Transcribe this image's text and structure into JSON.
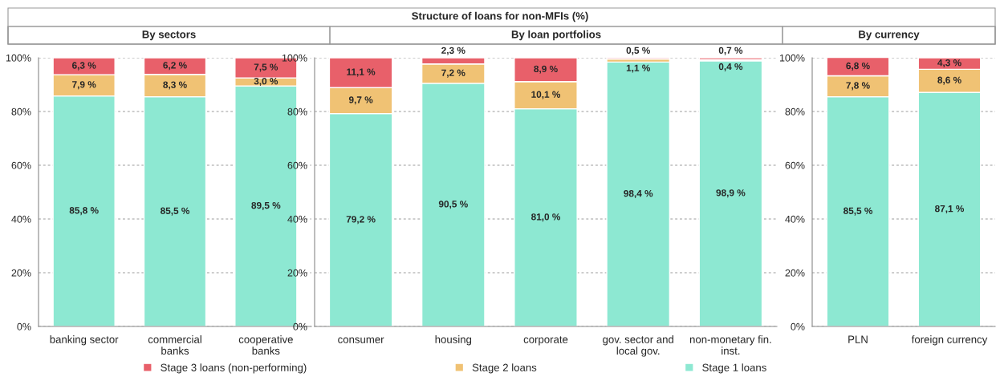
{
  "chart_data": [
    {
      "type": "bar",
      "stacked": true,
      "title": "By sectors",
      "annotations": [
        "Structure of loans for non-MFIs (%)"
      ],
      "categories": [
        "banking sector",
        "commercial\nbanks",
        "cooperative\nbanks"
      ],
      "series": [
        {
          "color": "#8de8d2",
          "values": [
            85.8,
            85.5,
            89.5
          ],
          "value_labels": [
            "85,8 %",
            "85,5 %",
            "89,5 %"
          ]
        },
        {
          "color": "#f0c274",
          "values": [
            7.9,
            8.3,
            3.0
          ],
          "value_labels": [
            "7,9 %",
            "8,3 %",
            "3,0 %"
          ]
        },
        {
          "color": "#e8606a",
          "values": [
            6.3,
            6.2,
            7.5
          ],
          "value_labels": [
            "6,3 %",
            "6,2 %",
            "7,5 %"
          ]
        }
      ],
      "ylim": [
        0,
        100
      ],
      "yticks": [
        {
          "value": 0,
          "label": "0%"
        },
        {
          "value": 20,
          "label": "20%"
        },
        {
          "value": 40,
          "label": "40%"
        },
        {
          "value": 60,
          "label": "60%"
        },
        {
          "value": 80,
          "label": "80%"
        },
        {
          "value": 100,
          "label": "100%"
        }
      ],
      "grid": "y"
    },
    {
      "type": "bar",
      "stacked": true,
      "title": "By loan portfolios",
      "legend": "bottom",
      "categories": [
        "consumer",
        "housing",
        "corporate",
        "gov. sector and\nlocal gov.",
        "non-monetary fin.\ninst."
      ],
      "series": [
        {
          "name": "Stage 1 loans",
          "color": "#8de8d2",
          "values": [
            79.2,
            90.5,
            81.0,
            98.4,
            98.9
          ],
          "value_labels": [
            "79,2 %",
            "90,5 %",
            "81,0 %",
            "98,4 %",
            "98,9 %"
          ]
        },
        {
          "name": "Stage 2 loans",
          "color": "#f0c274",
          "values": [
            9.7,
            7.2,
            10.1,
            1.1,
            0.4
          ],
          "value_labels": [
            "9,7 %",
            "7,2 %",
            "10,1 %",
            "1,1 %",
            "0,4 %"
          ]
        },
        {
          "name": "Stage 3 loans (non-performing)",
          "color": "#e8606a",
          "values": [
            11.1,
            2.3,
            8.9,
            0.5,
            0.7
          ],
          "value_labels": [
            "11,1 %",
            "2,3 %",
            "8,9 %",
            "0,5 %",
            "0,7 %"
          ]
        }
      ],
      "ylim": [
        0,
        100
      ],
      "yticks": [
        {
          "value": 0,
          "label": "0%"
        },
        {
          "value": 20,
          "label": "20%"
        },
        {
          "value": 40,
          "label": "40%"
        },
        {
          "value": 60,
          "label": "60%"
        },
        {
          "value": 80,
          "label": "80%"
        },
        {
          "value": 100,
          "label": "100%"
        }
      ],
      "grid": "y"
    },
    {
      "type": "bar",
      "stacked": true,
      "title": "By currency",
      "categories": [
        "PLN",
        "foreign currency"
      ],
      "series": [
        {
          "color": "#8de8d2",
          "values": [
            85.5,
            87.1
          ],
          "value_labels": [
            "85,5 %",
            "87,1 %"
          ]
        },
        {
          "color": "#f0c274",
          "values": [
            7.8,
            8.6
          ],
          "value_labels": [
            "7,8 %",
            "8,6 %"
          ]
        },
        {
          "color": "#e8606a",
          "values": [
            6.8,
            4.3
          ],
          "value_labels": [
            "6,8 %",
            "4,3 %"
          ]
        }
      ],
      "ylim": [
        0,
        100
      ],
      "yticks": [
        {
          "value": 0,
          "label": "0%"
        },
        {
          "value": 20,
          "label": "20%"
        },
        {
          "value": 40,
          "label": "40%"
        },
        {
          "value": 60,
          "label": "60%"
        },
        {
          "value": 80,
          "label": "80%"
        },
        {
          "value": 100,
          "label": "100%"
        }
      ],
      "grid": "y"
    }
  ]
}
